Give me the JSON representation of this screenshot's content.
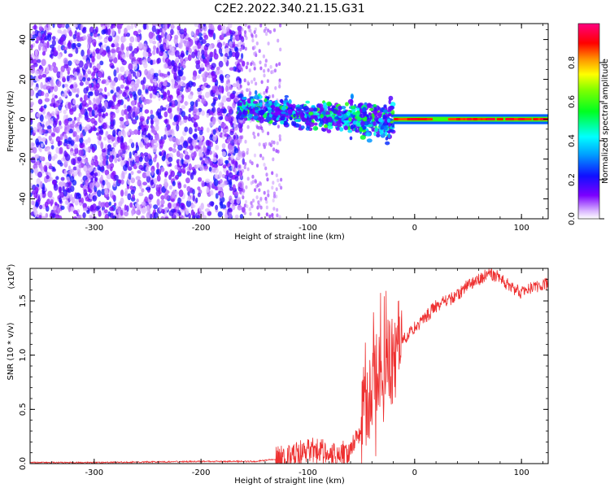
{
  "figure": {
    "title": "C2E2.2022.340.21.15.G31"
  },
  "colors": {
    "spectrum_low": "#7b00ff",
    "spectrum_mid": "#00ffff",
    "spectrum_high": "#ff0000",
    "snr_line": "#ee3030",
    "axis": "#000000"
  },
  "chart_data": [
    {
      "type": "heatmap",
      "title": "C2E2.2022.340.21.15.G31",
      "xlabel": "Height of straight line (km)",
      "ylabel": "Frequency (Hz)",
      "xlim": [
        -360,
        125
      ],
      "ylim": [
        -50,
        48
      ],
      "xticks": [
        -300,
        -200,
        -100,
        0,
        100
      ],
      "xtick_labels": [
        "-300",
        "-200",
        "-100",
        "0",
        "100"
      ],
      "yticks": [
        -40,
        -20,
        0,
        20,
        40
      ],
      "ytick_labels": [
        "-40",
        "-20",
        "0",
        "20",
        "40"
      ],
      "colorbar": {
        "label": "Normalized spectral amplitude",
        "range": [
          0,
          1
        ],
        "ticks": [
          0.0,
          0.2,
          0.4,
          0.6,
          0.8
        ],
        "tick_labels": [
          "0.0",
          "0.2",
          "0.4",
          "0.6",
          "0.8"
        ],
        "colormap": "rainbow"
      },
      "regions": [
        {
          "x_range": [
            -360,
            -165
          ],
          "freq_range": [
            -50,
            48
          ],
          "amplitude": 0.1,
          "pattern": "broadband noise"
        },
        {
          "x_range": [
            -165,
            -130
          ],
          "freq_range": [
            -50,
            48
          ],
          "amplitude": 0.05,
          "pattern": "sparse noise"
        },
        {
          "x_range": [
            -165,
            -20
          ],
          "freq_range": [
            -12,
            15
          ],
          "amplitude": 0.3,
          "pattern": "scintillated carrier"
        },
        {
          "x_range": [
            -20,
            125
          ],
          "freq_range": [
            -2,
            2
          ],
          "amplitude": 0.95,
          "pattern": "clean carrier"
        }
      ]
    },
    {
      "type": "line",
      "title": "",
      "xlabel": "Height of straight line (km)",
      "ylabel": "SNR (10 * v/v)",
      "scale_label": "(x10",
      "scale_exp": "4",
      "xlim": [
        -360,
        125
      ],
      "ylim": [
        0,
        1.8
      ],
      "xticks": [
        -300,
        -200,
        -100,
        0,
        100
      ],
      "xtick_labels": [
        "-300",
        "-200",
        "-100",
        "0",
        "100"
      ],
      "yticks": [
        0.0,
        0.5,
        1.0,
        1.5
      ],
      "ytick_labels": [
        "0.0",
        "0.5",
        "1.0",
        "1.5"
      ],
      "series": [
        {
          "color": "#ee3030",
          "x": [
            -360,
            -300,
            -200,
            -150,
            -120,
            -100,
            -90,
            -80,
            -70,
            -60,
            -50,
            -40,
            -30,
            -20,
            -15,
            -10,
            -5,
            0,
            10,
            20,
            30,
            40,
            50,
            60,
            70,
            80,
            90,
            100,
            110,
            125
          ],
          "y": [
            0.01,
            0.01,
            0.02,
            0.02,
            0.05,
            0.12,
            0.12,
            0.1,
            0.08,
            0.12,
            0.35,
            0.65,
            0.8,
            0.9,
            1.05,
            1.15,
            1.2,
            1.25,
            1.35,
            1.45,
            1.5,
            1.55,
            1.65,
            1.7,
            1.75,
            1.72,
            1.62,
            1.58,
            1.62,
            1.66
          ]
        }
      ]
    }
  ]
}
